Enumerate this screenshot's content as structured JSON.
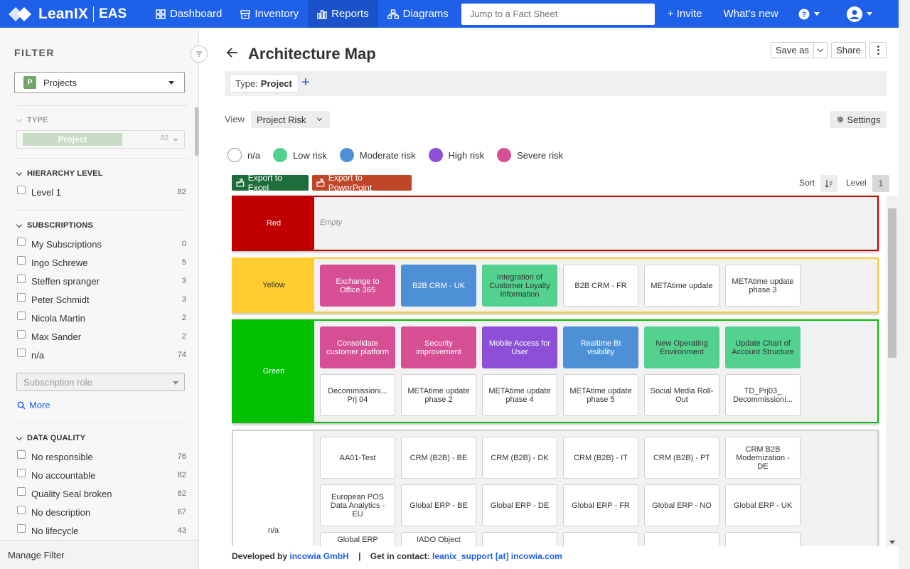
{
  "topbar": {
    "brand": "LeanIX",
    "edition": "EAS",
    "nav": [
      {
        "label": "Dashboard",
        "icon": "dashboard-icon"
      },
      {
        "label": "Inventory",
        "icon": "inventory-icon"
      },
      {
        "label": "Reports",
        "icon": "reports-icon",
        "active": true
      },
      {
        "label": "Diagrams",
        "icon": "diagrams-icon"
      }
    ],
    "search_placeholder": "Jump to a Fact Sheet",
    "invite": "+ Invite",
    "whats_new": "What's new",
    "help_icon": "help-icon",
    "user_icon": "user-avatar-icon",
    "colors": {
      "primary": "#1f60e8",
      "active": "#1a52c9"
    }
  },
  "sidebar": {
    "title": "FILTER",
    "factsheet_type": {
      "badge": "P",
      "label": "Projects"
    },
    "type_section": {
      "title": "TYPE",
      "chip": "Project",
      "count": "82"
    },
    "hierarchy": {
      "title": "HIERARCHY LEVEL",
      "items": [
        {
          "label": "Level 1",
          "count": "82"
        }
      ]
    },
    "subscriptions": {
      "title": "SUBSCRIPTIONS",
      "items": [
        {
          "label": "My Subscriptions",
          "count": "0"
        },
        {
          "label": "Ingo Schrewe",
          "count": "5"
        },
        {
          "label": "Steffen spranger",
          "count": "3"
        },
        {
          "label": "Peter Schmidt",
          "count": "3"
        },
        {
          "label": "Nicola Martin",
          "count": "2"
        },
        {
          "label": "Max Sander",
          "count": "2"
        },
        {
          "label": "n/a",
          "count": "74"
        }
      ],
      "role_placeholder": "Subscription role",
      "more": "More"
    },
    "data_quality": {
      "title": "DATA QUALITY",
      "items": [
        {
          "label": "No responsible",
          "count": "76"
        },
        {
          "label": "No accountable",
          "count": "82"
        },
        {
          "label": "Quality Seal broken",
          "count": "82"
        },
        {
          "label": "No description",
          "count": "67"
        },
        {
          "label": "No lifecycle",
          "count": "43"
        }
      ]
    },
    "manage_filter": "Manage Filter"
  },
  "main": {
    "title": "Architecture Map",
    "save_as": "Save as",
    "share": "Share",
    "type_filter": {
      "label": "Type:",
      "value": "Project"
    },
    "view": {
      "label": "View",
      "value": "Project Risk"
    },
    "settings": "Settings",
    "legend": [
      {
        "label": "n/a",
        "color": "#ffffff"
      },
      {
        "label": "Low risk",
        "color": "#52d18f"
      },
      {
        "label": "Moderate risk",
        "color": "#4d90d6"
      },
      {
        "label": "High risk",
        "color": "#8c4fd6"
      },
      {
        "label": "Severe risk",
        "color": "#d64f95"
      }
    ],
    "export_excel": "Export to Excel",
    "export_ppt": "Export to PowerPoint",
    "sort": "Sort",
    "level": {
      "label": "Level",
      "value": "1"
    },
    "lanes": [
      {
        "name": "Red",
        "head_color": "#c00000",
        "border_color": "#c00000",
        "text_color": "#ffffff",
        "empty_label": "Empty",
        "cards": []
      },
      {
        "name": "Yellow",
        "head_color": "#ffcc2f",
        "border_color": "#ffcc2f",
        "text_color": "#333333",
        "cards": [
          {
            "label": "Exchange to Office 365",
            "risk": "sev"
          },
          {
            "label": "B2B CRM - UK",
            "risk": "mod"
          },
          {
            "label": "Integration of Customer Loyalty Information",
            "risk": "low"
          },
          {
            "label": "B2B CRM - FR",
            "risk": "na"
          },
          {
            "label": "METAtime update",
            "risk": "na"
          },
          {
            "label": "METAtime update phase 3",
            "risk": "na"
          }
        ]
      },
      {
        "name": "Green",
        "head_color": "#00c000",
        "border_color": "#00c000",
        "text_color": "#ffffff",
        "cards": [
          {
            "label": "Consolidate customer platform",
            "risk": "sev"
          },
          {
            "label": "Security improvement",
            "risk": "sev"
          },
          {
            "label": "Mobile Access for User",
            "risk": "high"
          },
          {
            "label": "Realtime BI visibility",
            "risk": "mod"
          },
          {
            "label": "New Operating Environment",
            "risk": "low"
          },
          {
            "label": "Update Chart of Account Structure",
            "risk": "low"
          },
          {
            "label": "Decommissioni... Prj 04",
            "risk": "na"
          },
          {
            "label": "METAtime update phase 2",
            "risk": "na"
          },
          {
            "label": "METAtime update phase 4",
            "risk": "na"
          },
          {
            "label": "METAtime update phase 5",
            "risk": "na"
          },
          {
            "label": "Social Media Roll-Out",
            "risk": "na"
          },
          {
            "label": "TD_Prj03_ Decommissioni...",
            "risk": "na"
          }
        ]
      },
      {
        "name": "n/a",
        "head_color": "#ffffff",
        "border_color": "#d0d0d0",
        "text_color": "#333333",
        "cards": [
          {
            "label": "AA01-Test",
            "risk": "na"
          },
          {
            "label": "CRM (B2B) - BE",
            "risk": "na"
          },
          {
            "label": "CRM (B2B) - DK",
            "risk": "na"
          },
          {
            "label": "CRM (B2B) - IT",
            "risk": "na"
          },
          {
            "label": "CRM (B2B) - PT",
            "risk": "na"
          },
          {
            "label": "CRM B2B Modernization - DE",
            "risk": "na"
          },
          {
            "label": "European POS Data Analytics - EU",
            "risk": "na"
          },
          {
            "label": "Global ERP - BE",
            "risk": "na"
          },
          {
            "label": "Global ERP - DE",
            "risk": "na"
          },
          {
            "label": "Global ERP - FR",
            "risk": "na"
          },
          {
            "label": "Global ERP - NO",
            "risk": "na"
          },
          {
            "label": "Global ERP - UK",
            "risk": "na"
          },
          {
            "label": "Global ERP",
            "risk": "na"
          },
          {
            "label": "IADO Object",
            "risk": "na"
          },
          {
            "label": "",
            "risk": "na"
          },
          {
            "label": "",
            "risk": "na"
          },
          {
            "label": "",
            "risk": "na"
          },
          {
            "label": "",
            "risk": "na"
          }
        ]
      }
    ],
    "footer": {
      "developed_by": "Developed by",
      "company": "incowia GmbH",
      "separator": "|",
      "contact_label": "Get in contact:",
      "contact": "leanix_support [at] incowia.com"
    }
  }
}
